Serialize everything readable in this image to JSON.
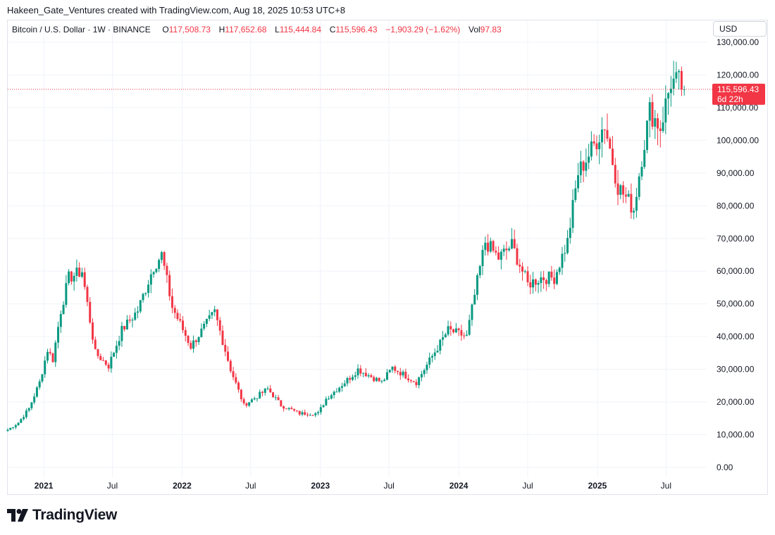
{
  "header": {
    "attribution": "Hakeen_Gate_Ventures created with TradingView.com, Aug 18, 2025 10:53 UTC+8"
  },
  "legend": {
    "title": "Bitcoin / U.S. Dollar · 1W · BINANCE",
    "open_key": "O",
    "open": "117,508.73",
    "high_key": "H",
    "high": "117,652.68",
    "low_key": "L",
    "low": "115,444.84",
    "close_key": "C",
    "close": "115,596.43",
    "change": "−1,903.29 (−1.62%)",
    "vol_key": "Vol",
    "vol": "97.83"
  },
  "currency_button": "USD",
  "price_label": {
    "price": "115,596.43",
    "countdown": "6d 22h"
  },
  "footer": {
    "brand": "TradingView"
  },
  "colors": {
    "up": "#089981",
    "down": "#f23645",
    "grid": "#f0f3fa",
    "axis_text": "#131722"
  },
  "chart_data": {
    "type": "candlestick",
    "interval": "1W",
    "last_price": 115596.43,
    "ylim": [
      0,
      130000
    ],
    "y_ticks": [
      {
        "value": 0,
        "label": "0.00"
      },
      {
        "value": 10000,
        "label": "10,000.00"
      },
      {
        "value": 20000,
        "label": "20,000.00"
      },
      {
        "value": 30000,
        "label": "30,000.00"
      },
      {
        "value": 40000,
        "label": "40,000.00"
      },
      {
        "value": 50000,
        "label": "50,000.00"
      },
      {
        "value": 60000,
        "label": "60,000.00"
      },
      {
        "value": 70000,
        "label": "70,000.00"
      },
      {
        "value": 80000,
        "label": "80,000.00"
      },
      {
        "value": 90000,
        "label": "90,000.00"
      },
      {
        "value": 100000,
        "label": "100,000.00"
      },
      {
        "value": 110000,
        "label": "110,000.00"
      },
      {
        "value": 120000,
        "label": "120,000.00"
      },
      {
        "value": 130000,
        "label": "130,000.00"
      }
    ],
    "x_ticks": [
      {
        "date": "2021-01-01",
        "label": "2021",
        "bold": true
      },
      {
        "date": "2021-07-01",
        "label": "Jul",
        "bold": false
      },
      {
        "date": "2022-01-01",
        "label": "2022",
        "bold": true
      },
      {
        "date": "2022-07-01",
        "label": "Jul",
        "bold": false
      },
      {
        "date": "2023-01-01",
        "label": "2023",
        "bold": true
      },
      {
        "date": "2023-07-01",
        "label": "Jul",
        "bold": false
      },
      {
        "date": "2024-01-01",
        "label": "2024",
        "bold": true
      },
      {
        "date": "2024-07-01",
        "label": "Jul",
        "bold": false
      },
      {
        "date": "2025-01-01",
        "label": "2025",
        "bold": true
      },
      {
        "date": "2025-07-01",
        "label": "Jul",
        "bold": false
      }
    ],
    "x_range": [
      "2020-09-28",
      "2025-09-22"
    ],
    "weekly_close": [
      {
        "date": "2020-09-28",
        "close": 11500
      },
      {
        "date": "2020-10-26",
        "close": 13700
      },
      {
        "date": "2020-11-23",
        "close": 18000
      },
      {
        "date": "2020-12-21",
        "close": 26000
      },
      {
        "date": "2021-01-11",
        "close": 36000
      },
      {
        "date": "2021-01-25",
        "close": 33000
      },
      {
        "date": "2021-02-15",
        "close": 48000
      },
      {
        "date": "2021-03-08",
        "close": 58000
      },
      {
        "date": "2021-04-12",
        "close": 60000
      },
      {
        "date": "2021-05-17",
        "close": 35000
      },
      {
        "date": "2021-06-21",
        "close": 31000
      },
      {
        "date": "2021-07-26",
        "close": 42000
      },
      {
        "date": "2021-09-06",
        "close": 48000
      },
      {
        "date": "2021-10-18",
        "close": 61500
      },
      {
        "date": "2021-11-08",
        "close": 65000
      },
      {
        "date": "2021-12-06",
        "close": 49000
      },
      {
        "date": "2022-01-24",
        "close": 37000
      },
      {
        "date": "2022-03-28",
        "close": 47500
      },
      {
        "date": "2022-05-09",
        "close": 30000
      },
      {
        "date": "2022-06-13",
        "close": 19000
      },
      {
        "date": "2022-08-15",
        "close": 24000
      },
      {
        "date": "2022-09-19",
        "close": 19000
      },
      {
        "date": "2022-11-07",
        "close": 16500
      },
      {
        "date": "2022-12-26",
        "close": 16500
      },
      {
        "date": "2023-01-16",
        "close": 21000
      },
      {
        "date": "2023-03-20",
        "close": 27500
      },
      {
        "date": "2023-04-10",
        "close": 30000
      },
      {
        "date": "2023-06-12",
        "close": 26000
      },
      {
        "date": "2023-07-10",
        "close": 30500
      },
      {
        "date": "2023-09-11",
        "close": 26000
      },
      {
        "date": "2023-10-23",
        "close": 34000
      },
      {
        "date": "2023-12-04",
        "close": 42000
      },
      {
        "date": "2024-01-22",
        "close": 40000
      },
      {
        "date": "2024-02-26",
        "close": 61000
      },
      {
        "date": "2024-03-11",
        "close": 69000
      },
      {
        "date": "2024-04-15",
        "close": 64000
      },
      {
        "date": "2024-05-20",
        "close": 68000
      },
      {
        "date": "2024-07-01",
        "close": 56000
      },
      {
        "date": "2024-08-05",
        "close": 58000
      },
      {
        "date": "2024-09-09",
        "close": 58000
      },
      {
        "date": "2024-10-14",
        "close": 69000
      },
      {
        "date": "2024-11-11",
        "close": 90000
      },
      {
        "date": "2024-12-16",
        "close": 97000
      },
      {
        "date": "2025-01-20",
        "close": 105000
      },
      {
        "date": "2025-02-24",
        "close": 86000
      },
      {
        "date": "2025-04-07",
        "close": 79000
      },
      {
        "date": "2025-04-28",
        "close": 95000
      },
      {
        "date": "2025-05-19",
        "close": 109000
      },
      {
        "date": "2025-06-16",
        "close": 104000
      },
      {
        "date": "2025-07-14",
        "close": 118000
      },
      {
        "date": "2025-08-04",
        "close": 117500
      },
      {
        "date": "2025-08-18",
        "close": 115596.43
      }
    ]
  }
}
